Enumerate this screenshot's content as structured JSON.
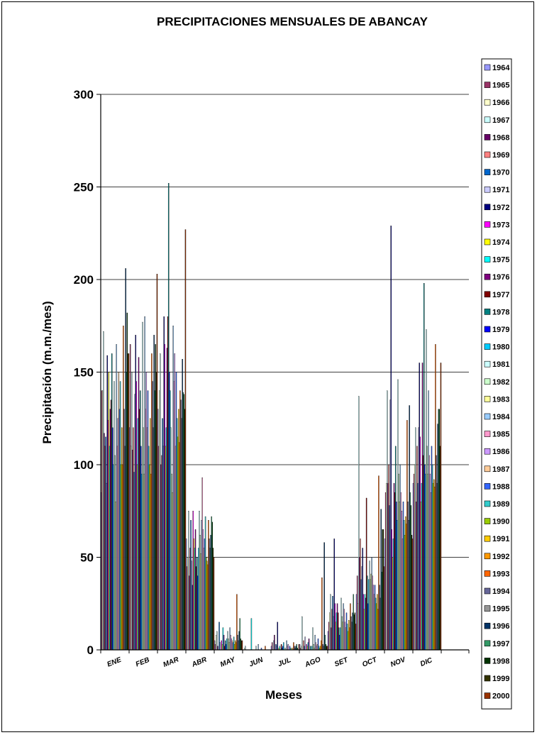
{
  "chart_data": {
    "type": "bar",
    "title": "PRECIPITACIONES MENSUALES DE ABANCAY",
    "xlabel": "Meses",
    "ylabel": "Precipitación (m.m./mes)",
    "ylim": [
      0,
      300
    ],
    "yticks": [
      0,
      50,
      100,
      150,
      200,
      250,
      300
    ],
    "grid": true,
    "legend_position": "right",
    "categories": [
      "ENE",
      "FEB",
      "MAR",
      "ABR",
      "MAY",
      "JUN",
      "JUL",
      "AGO",
      "SET",
      "OCT",
      "NOV",
      "DIC"
    ],
    "series": [
      {
        "name": "1964",
        "color": "#9999FF",
        "values": [
          85,
          120,
          130,
          60,
          5,
          0,
          2,
          3,
          10,
          30,
          60,
          90
        ]
      },
      {
        "name": "1965",
        "color": "#993366",
        "values": [
          140,
          165,
          110,
          45,
          3,
          0,
          4,
          1,
          15,
          40,
          85,
          95
        ]
      },
      {
        "name": "1966",
        "color": "#FFFFCC",
        "values": [
          140,
          110,
          140,
          50,
          8,
          1,
          0,
          2,
          20,
          25,
          90,
          100
        ]
      },
      {
        "name": "1967",
        "color": "#CCFFFF",
        "values": [
          172,
          150,
          160,
          75,
          10,
          2,
          5,
          18,
          30,
          137,
          140,
          120
        ]
      },
      {
        "name": "1968",
        "color": "#660066",
        "values": [
          117,
          108,
          100,
          40,
          2,
          0,
          8,
          0,
          12,
          50,
          90,
          80
        ]
      },
      {
        "name": "1969",
        "color": "#FF8080",
        "values": [
          110,
          120,
          105,
          55,
          0,
          0,
          0,
          5,
          22,
          60,
          100,
          110
        ]
      },
      {
        "name": "1970",
        "color": "#0066CC",
        "values": [
          115,
          96,
          125,
          70,
          15,
          0,
          3,
          2,
          29,
          38,
          78,
          90
        ]
      },
      {
        "name": "1971",
        "color": "#CCCCFF",
        "values": [
          90,
          138,
          110,
          48,
          4,
          0,
          2,
          7,
          18,
          45,
          135,
          120
        ]
      },
      {
        "name": "1972",
        "color": "#000080",
        "values": [
          159,
          170,
          180,
          35,
          0,
          0,
          15,
          0,
          60,
          55,
          229,
          155
        ]
      },
      {
        "name": "1973",
        "color": "#FF00FF",
        "values": [
          124,
          145,
          165,
          75,
          5,
          0,
          0,
          3,
          25,
          30,
          65,
          115
        ]
      },
      {
        "name": "1974",
        "color": "#FFFF00",
        "values": [
          150,
          100,
          110,
          60,
          3,
          0,
          1,
          2,
          15,
          22,
          50,
          80
        ]
      },
      {
        "name": "1975",
        "color": "#00FFFF",
        "values": [
          110,
          125,
          120,
          55,
          12,
          17,
          2,
          4,
          20,
          30,
          60,
          90
        ]
      },
      {
        "name": "1976",
        "color": "#800080",
        "values": [
          130,
          158,
          163,
          65,
          8,
          0,
          0,
          6,
          25,
          28,
          90,
          155
        ]
      },
      {
        "name": "1977",
        "color": "#800000",
        "values": [
          135,
          130,
          180,
          45,
          2,
          0,
          3,
          0,
          20,
          82,
          85,
          105
        ]
      },
      {
        "name": "1978",
        "color": "#008080",
        "values": [
          160,
          140,
          252,
          50,
          5,
          0,
          1,
          2,
          12,
          40,
          110,
          198
        ]
      },
      {
        "name": "1979",
        "color": "#0000FF",
        "values": [
          120,
          110,
          150,
          40,
          3,
          0,
          2,
          0,
          8,
          25,
          80,
          100
        ]
      },
      {
        "name": "1980",
        "color": "#00CCFF",
        "values": [
          100,
          95,
          140,
          55,
          6,
          0,
          4,
          2,
          12,
          38,
          70,
          95
        ]
      },
      {
        "name": "1981",
        "color": "#CCFFFF",
        "values": [
          145,
          177,
          120,
          75,
          10,
          2,
          0,
          12,
          28,
          48,
          146,
          173
        ]
      },
      {
        "name": "1982",
        "color": "#CCFFCC",
        "values": [
          105,
          120,
          95,
          62,
          6,
          0,
          1,
          3,
          18,
          38,
          95,
          110
        ]
      },
      {
        "name": "1983",
        "color": "#FFFF99",
        "values": [
          80,
          95,
          85,
          52,
          4,
          0,
          0,
          1,
          15,
          41,
          80,
          95
        ]
      },
      {
        "name": "1984",
        "color": "#99CCFF",
        "values": [
          165,
          180,
          175,
          70,
          12,
          3,
          5,
          8,
          25,
          50,
          100,
          140
        ]
      },
      {
        "name": "1985",
        "color": "#FF99CC",
        "values": [
          110,
          130,
          145,
          93,
          8,
          0,
          2,
          4,
          22,
          40,
          85,
          105
        ]
      },
      {
        "name": "1986",
        "color": "#CC99FF",
        "values": [
          125,
          150,
          160,
          65,
          6,
          0,
          3,
          2,
          15,
          35,
          75,
          95
        ]
      },
      {
        "name": "1987",
        "color": "#FFCC99",
        "values": [
          150,
          120,
          110,
          55,
          5,
          0,
          0,
          3,
          12,
          30,
          60,
          85
        ]
      },
      {
        "name": "1988",
        "color": "#3366FF",
        "values": [
          130,
          140,
          150,
          60,
          4,
          1,
          2,
          6,
          20,
          35,
          80,
          110
        ]
      },
      {
        "name": "1989",
        "color": "#33CCCC",
        "values": [
          145,
          110,
          125,
          72,
          7,
          0,
          1,
          2,
          14,
          28,
          70,
          100
        ]
      },
      {
        "name": "1990",
        "color": "#99CC00",
        "values": [
          100,
          100,
          115,
          50,
          3,
          0,
          0,
          1,
          10,
          25,
          62,
          90
        ]
      },
      {
        "name": "1991",
        "color": "#FFCC00",
        "values": [
          120,
          125,
          130,
          48,
          5,
          0,
          1,
          2,
          16,
          30,
          72,
          92
        ]
      },
      {
        "name": "1992",
        "color": "#FF9900",
        "values": [
          100,
          95,
          112,
          46,
          4,
          0,
          0,
          5,
          12,
          22,
          68,
          88
        ]
      },
      {
        "name": "1993",
        "color": "#FF6600",
        "values": [
          175,
          160,
          140,
          70,
          30,
          2,
          4,
          39,
          25,
          94,
          124,
          165
        ]
      },
      {
        "name": "1994",
        "color": "#666699",
        "values": [
          130,
          145,
          135,
          60,
          8,
          0,
          2,
          3,
          18,
          35,
          80,
          105
        ]
      },
      {
        "name": "1995",
        "color": "#969696",
        "values": [
          110,
          120,
          125,
          55,
          5,
          0,
          1,
          2,
          15,
          28,
          70,
          90
        ]
      },
      {
        "name": "1996",
        "color": "#003366",
        "values": [
          206,
          170,
          157,
          62,
          10,
          0,
          2,
          58,
          20,
          76,
          132,
          122
        ]
      },
      {
        "name": "1997",
        "color": "#339966",
        "values": [
          150,
          140,
          139,
          72,
          17,
          0,
          3,
          8,
          30,
          42,
          85,
          130
        ]
      },
      {
        "name": "1998",
        "color": "#003300",
        "values": [
          182,
          165,
          138,
          69,
          6,
          0,
          1,
          3,
          19,
          65,
          78,
          130
        ]
      },
      {
        "name": "1999",
        "color": "#333300",
        "values": [
          160,
          150,
          130,
          55,
          5,
          0,
          0,
          2,
          20,
          65,
          62,
          110
        ]
      },
      {
        "name": "2000",
        "color": "#993300",
        "values": [
          160,
          203,
          227,
          50,
          5,
          0,
          3,
          2,
          14,
          45,
          60,
          155
        ]
      }
    ]
  }
}
